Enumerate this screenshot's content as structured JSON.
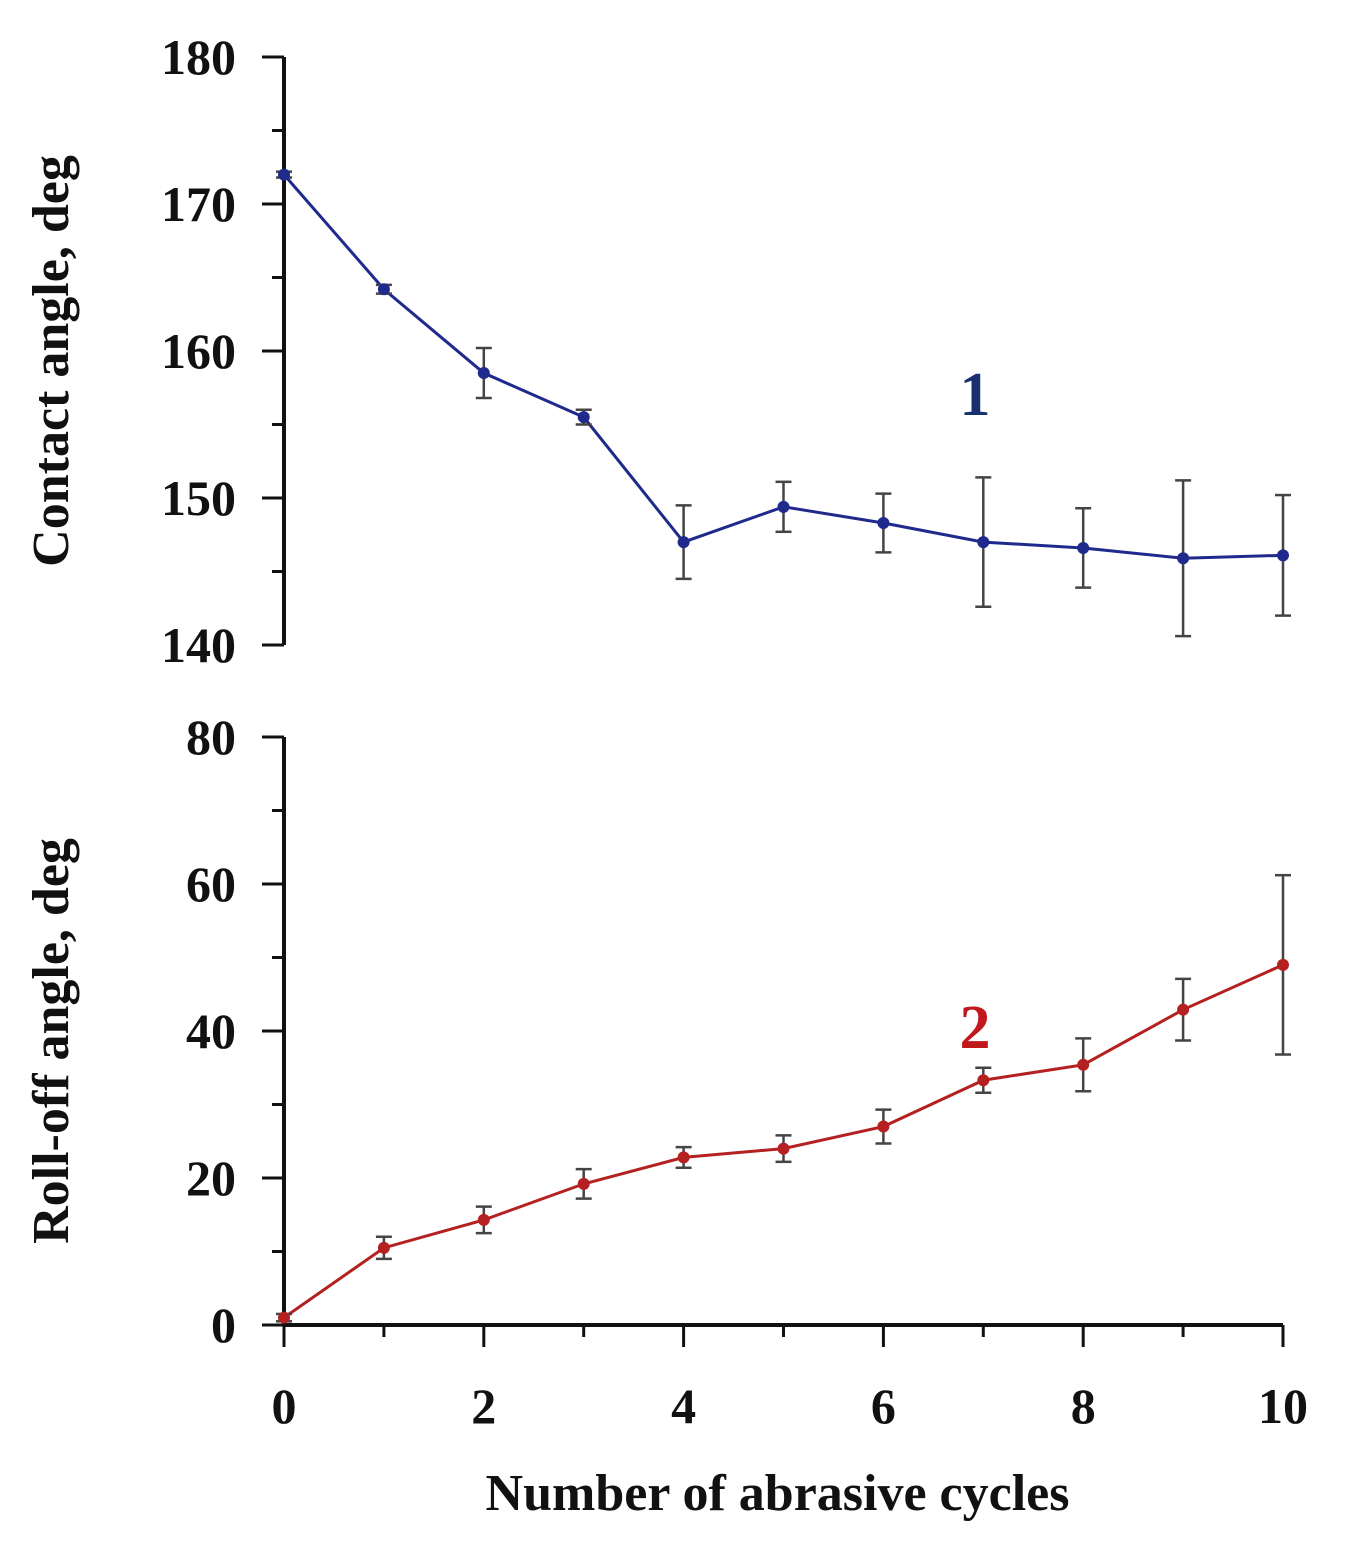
{
  "chart_data": [
    {
      "type": "line",
      "ylabel": "Contact angle, deg",
      "xlabel": "",
      "ylim": [
        140,
        180
      ],
      "yticks": [
        "140",
        "150",
        "160",
        "170",
        "180"
      ],
      "xlim": [
        0,
        10
      ],
      "series": [
        {
          "name": "1",
          "color": "#1f2a8c",
          "label_color": "#1a2f6e",
          "x": [
            0,
            1,
            2,
            3,
            4,
            5,
            6,
            7,
            8,
            9,
            10
          ],
          "values": [
            172.0,
            164.2,
            158.5,
            155.5,
            147.0,
            149.4,
            148.3,
            147.0,
            146.6,
            145.9,
            146.1
          ],
          "error": [
            0.2,
            0.3,
            1.7,
            0.5,
            2.5,
            1.7,
            2.0,
            4.4,
            2.7,
            5.3,
            4.1
          ]
        }
      ],
      "annotations": [
        {
          "text": "1",
          "x": 6.75,
          "y": 153
        }
      ]
    },
    {
      "type": "line",
      "ylabel": "Roll-off angle, deg",
      "xlabel": "Number of abrasive cycles",
      "ylim": [
        0,
        80
      ],
      "yticks": [
        "0",
        "20",
        "40",
        "60",
        "80"
      ],
      "xlim": [
        0,
        10
      ],
      "xticks": [
        "0",
        "2",
        "4",
        "6",
        "8",
        "10"
      ],
      "series": [
        {
          "name": "2",
          "color": "#b52020",
          "label_color": "#c0181d",
          "x": [
            0,
            1,
            2,
            3,
            4,
            5,
            6,
            7,
            8,
            9,
            10
          ],
          "values": [
            1.0,
            10.5,
            14.3,
            19.2,
            22.8,
            24.0,
            27.0,
            33.3,
            35.4,
            42.9,
            49.0
          ],
          "error": [
            0.5,
            1.5,
            1.8,
            2.0,
            1.4,
            1.8,
            2.3,
            1.7,
            3.6,
            4.2,
            12.2
          ]
        }
      ],
      "annotations": [
        {
          "text": "2",
          "x": 6.75,
          "y": 40
        }
      ]
    }
  ]
}
